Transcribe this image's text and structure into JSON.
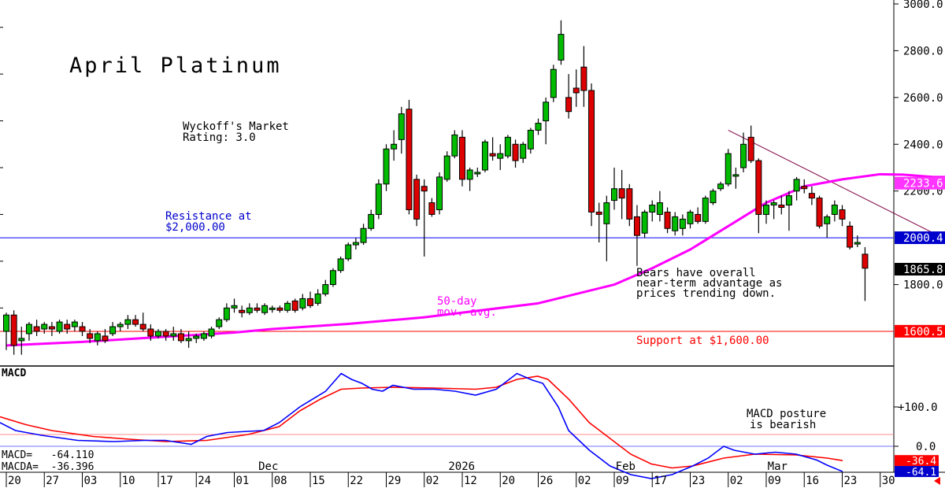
{
  "title": "April Platinum",
  "rating": {
    "line1": "Wyckoff's Market",
    "line2": "Rating: 3.0"
  },
  "annotations": {
    "resistance": {
      "line1": "Resistance at",
      "line2": "$2,000.00"
    },
    "ma": {
      "line1": "50-day",
      "line2": "mov. avg."
    },
    "bears": {
      "line1": "Bears have overall",
      "line2": "near-term advantage as",
      "line3": "prices trending down."
    },
    "support": "Support at $1,600.00",
    "macd_note": {
      "line1": "MACD posture",
      "line2": "is bearish"
    }
  },
  "price_axis": {
    "ticks": [
      "3000.0",
      "2800.0",
      "2600.0",
      "2400.0",
      "2200.0",
      "1800.0"
    ],
    "tick_values": [
      3000,
      2800,
      2600,
      2400,
      2200,
      1800
    ],
    "ylim": [
      1540,
      3020
    ]
  },
  "price_tags": [
    {
      "text": "2233.6",
      "value": 2233.6,
      "color": "#ff33ff"
    },
    {
      "text": "2000.4",
      "value": 2000.4,
      "color": "#0000cc"
    },
    {
      "text": "1865.8",
      "value": 1865.8,
      "color": "#000000"
    },
    {
      "text": "1600.5",
      "value": 1600.5,
      "color": "#ff0000"
    }
  ],
  "levels": {
    "resistance": 2000,
    "support": 1600
  },
  "macd": {
    "label": "MACD",
    "readout1": "MACD=   -64.110",
    "readout2": "MACDA=  -36.396",
    "ticks": [
      "+100.0",
      "0.0"
    ],
    "tick_values": [
      100,
      0
    ],
    "ylim": [
      -100,
      250
    ],
    "tags": [
      {
        "text": "-36.4",
        "value": -36.4,
        "color": "#ff0000"
      },
      {
        "text": "-64.1",
        "value": -64.1,
        "color": "#0000cc"
      }
    ]
  },
  "x_axis": {
    "months": [
      "Dec",
      "2026",
      "Feb",
      "Mar"
    ],
    "month_index": [
      34,
      59,
      81,
      101
    ],
    "days": [
      "20",
      "27",
      "03",
      "10",
      "17",
      "24",
      "01",
      "08",
      "15",
      "22",
      "29",
      "02",
      "12",
      "20",
      "26",
      "02",
      "09",
      "17",
      "23",
      "02",
      "09",
      "16",
      "23",
      "30"
    ],
    "day_index": [
      0,
      5,
      10,
      15,
      20,
      25,
      30,
      35,
      40,
      45,
      50,
      55,
      60,
      65,
      70,
      75,
      80,
      85,
      90,
      95,
      100,
      105,
      110,
      115
    ]
  },
  "chart_data": {
    "type": "candlestick",
    "title": "April Platinum",
    "colors": {
      "up": "#00bb00",
      "down": "#dd0000",
      "ma": "#ff00ff",
      "macd": "#0000ff",
      "signal": "#ff0000"
    },
    "ylim": [
      1540,
      3020
    ],
    "candles": [
      {
        "o": 1600,
        "h": 1680,
        "l": 1520,
        "c": 1670
      },
      {
        "o": 1670,
        "h": 1690,
        "l": 1500,
        "c": 1540
      },
      {
        "o": 1560,
        "h": 1620,
        "l": 1500,
        "c": 1570
      },
      {
        "o": 1590,
        "h": 1640,
        "l": 1560,
        "c": 1630
      },
      {
        "o": 1620,
        "h": 1650,
        "l": 1580,
        "c": 1600
      },
      {
        "o": 1610,
        "h": 1640,
        "l": 1590,
        "c": 1630
      },
      {
        "o": 1620,
        "h": 1640,
        "l": 1580,
        "c": 1610
      },
      {
        "o": 1600,
        "h": 1650,
        "l": 1590,
        "c": 1640
      },
      {
        "o": 1630,
        "h": 1650,
        "l": 1590,
        "c": 1610
      },
      {
        "o": 1620,
        "h": 1650,
        "l": 1600,
        "c": 1640
      },
      {
        "o": 1620,
        "h": 1640,
        "l": 1580,
        "c": 1600
      },
      {
        "o": 1590,
        "h": 1610,
        "l": 1550,
        "c": 1570
      },
      {
        "o": 1560,
        "h": 1600,
        "l": 1540,
        "c": 1590
      },
      {
        "o": 1580,
        "h": 1610,
        "l": 1550,
        "c": 1560
      },
      {
        "o": 1590,
        "h": 1640,
        "l": 1580,
        "c": 1620
      },
      {
        "o": 1620,
        "h": 1640,
        "l": 1600,
        "c": 1630
      },
      {
        "o": 1630,
        "h": 1670,
        "l": 1610,
        "c": 1650
      },
      {
        "o": 1650,
        "h": 1670,
        "l": 1620,
        "c": 1630
      },
      {
        "o": 1630,
        "h": 1680,
        "l": 1600,
        "c": 1610
      },
      {
        "o": 1610,
        "h": 1630,
        "l": 1560,
        "c": 1580
      },
      {
        "o": 1580,
        "h": 1610,
        "l": 1570,
        "c": 1600
      },
      {
        "o": 1600,
        "h": 1610,
        "l": 1560,
        "c": 1580
      },
      {
        "o": 1580,
        "h": 1620,
        "l": 1560,
        "c": 1590
      },
      {
        "o": 1590,
        "h": 1610,
        "l": 1550,
        "c": 1560
      },
      {
        "o": 1560,
        "h": 1600,
        "l": 1530,
        "c": 1570
      },
      {
        "o": 1570,
        "h": 1590,
        "l": 1550,
        "c": 1580
      },
      {
        "o": 1570,
        "h": 1600,
        "l": 1560,
        "c": 1590
      },
      {
        "o": 1580,
        "h": 1620,
        "l": 1570,
        "c": 1610
      },
      {
        "o": 1620,
        "h": 1660,
        "l": 1610,
        "c": 1650
      },
      {
        "o": 1650,
        "h": 1720,
        "l": 1640,
        "c": 1700
      },
      {
        "o": 1700,
        "h": 1740,
        "l": 1680,
        "c": 1710
      },
      {
        "o": 1690,
        "h": 1710,
        "l": 1660,
        "c": 1680
      },
      {
        "o": 1680,
        "h": 1720,
        "l": 1670,
        "c": 1700
      },
      {
        "o": 1700,
        "h": 1720,
        "l": 1680,
        "c": 1690
      },
      {
        "o": 1680,
        "h": 1720,
        "l": 1670,
        "c": 1710
      },
      {
        "o": 1700,
        "h": 1710,
        "l": 1680,
        "c": 1700
      },
      {
        "o": 1700,
        "h": 1710,
        "l": 1680,
        "c": 1690
      },
      {
        "o": 1690,
        "h": 1730,
        "l": 1680,
        "c": 1720
      },
      {
        "o": 1730,
        "h": 1740,
        "l": 1680,
        "c": 1690
      },
      {
        "o": 1700,
        "h": 1760,
        "l": 1690,
        "c": 1740
      },
      {
        "o": 1740,
        "h": 1770,
        "l": 1700,
        "c": 1710
      },
      {
        "o": 1720,
        "h": 1780,
        "l": 1710,
        "c": 1760
      },
      {
        "o": 1760,
        "h": 1820,
        "l": 1750,
        "c": 1800
      },
      {
        "o": 1800,
        "h": 1870,
        "l": 1790,
        "c": 1860
      },
      {
        "o": 1860,
        "h": 1920,
        "l": 1850,
        "c": 1910
      },
      {
        "o": 1910,
        "h": 1980,
        "l": 1900,
        "c": 1970
      },
      {
        "o": 1970,
        "h": 2000,
        "l": 1950,
        "c": 1980
      },
      {
        "o": 1980,
        "h": 2060,
        "l": 1970,
        "c": 2040
      },
      {
        "o": 2040,
        "h": 2120,
        "l": 2030,
        "c": 2100
      },
      {
        "o": 2100,
        "h": 2250,
        "l": 2080,
        "c": 2230
      },
      {
        "o": 2230,
        "h": 2400,
        "l": 2200,
        "c": 2380
      },
      {
        "o": 2380,
        "h": 2460,
        "l": 2330,
        "c": 2400
      },
      {
        "o": 2420,
        "h": 2560,
        "l": 2360,
        "c": 2530
      },
      {
        "o": 2550,
        "h": 2590,
        "l": 2100,
        "c": 2120
      },
      {
        "o": 2250,
        "h": 2270,
        "l": 2050,
        "c": 2080
      },
      {
        "o": 2220,
        "h": 2250,
        "l": 1920,
        "c": 2200
      },
      {
        "o": 2150,
        "h": 2170,
        "l": 2090,
        "c": 2100
      },
      {
        "o": 2120,
        "h": 2280,
        "l": 2100,
        "c": 2260
      },
      {
        "o": 2250,
        "h": 2370,
        "l": 2240,
        "c": 2350
      },
      {
        "o": 2350,
        "h": 2460,
        "l": 2340,
        "c": 2440
      },
      {
        "o": 2430,
        "h": 2460,
        "l": 2220,
        "c": 2250
      },
      {
        "o": 2250,
        "h": 2300,
        "l": 2200,
        "c": 2290
      },
      {
        "o": 2280,
        "h": 2300,
        "l": 2260,
        "c": 2280
      },
      {
        "o": 2290,
        "h": 2420,
        "l": 2280,
        "c": 2410
      },
      {
        "o": 2360,
        "h": 2430,
        "l": 2330,
        "c": 2350
      },
      {
        "o": 2340,
        "h": 2400,
        "l": 2290,
        "c": 2360
      },
      {
        "o": 2350,
        "h": 2440,
        "l": 2340,
        "c": 2430
      },
      {
        "o": 2400,
        "h": 2420,
        "l": 2300,
        "c": 2330
      },
      {
        "o": 2340,
        "h": 2410,
        "l": 2320,
        "c": 2400
      },
      {
        "o": 2380,
        "h": 2470,
        "l": 2360,
        "c": 2460
      },
      {
        "o": 2460,
        "h": 2510,
        "l": 2440,
        "c": 2490
      },
      {
        "o": 2500,
        "h": 2600,
        "l": 2400,
        "c": 2580
      },
      {
        "o": 2600,
        "h": 2740,
        "l": 2580,
        "c": 2720
      },
      {
        "o": 2760,
        "h": 2930,
        "l": 2740,
        "c": 2870
      },
      {
        "o": 2600,
        "h": 2700,
        "l": 2510,
        "c": 2540
      },
      {
        "o": 2640,
        "h": 2720,
        "l": 2560,
        "c": 2620
      },
      {
        "o": 2730,
        "h": 2820,
        "l": 2560,
        "c": 2630
      },
      {
        "o": 2630,
        "h": 2660,
        "l": 2050,
        "c": 2110
      },
      {
        "o": 2110,
        "h": 2150,
        "l": 1980,
        "c": 2100
      },
      {
        "o": 2060,
        "h": 2180,
        "l": 1900,
        "c": 2150
      },
      {
        "o": 2160,
        "h": 2300,
        "l": 2120,
        "c": 2210
      },
      {
        "o": 2210,
        "h": 2290,
        "l": 2080,
        "c": 2170
      },
      {
        "o": 2210,
        "h": 2230,
        "l": 2050,
        "c": 2080
      },
      {
        "o": 2090,
        "h": 2140,
        "l": 1880,
        "c": 2010
      },
      {
        "o": 2020,
        "h": 2120,
        "l": 2000,
        "c": 2110
      },
      {
        "o": 2110,
        "h": 2160,
        "l": 2070,
        "c": 2140
      },
      {
        "o": 2100,
        "h": 2200,
        "l": 2070,
        "c": 2150
      },
      {
        "o": 2110,
        "h": 2130,
        "l": 2020,
        "c": 2040
      },
      {
        "o": 2030,
        "h": 2110,
        "l": 2010,
        "c": 2090
      },
      {
        "o": 2040,
        "h": 2100,
        "l": 2010,
        "c": 2080
      },
      {
        "o": 2060,
        "h": 2120,
        "l": 2040,
        "c": 2110
      },
      {
        "o": 2100,
        "h": 2130,
        "l": 2060,
        "c": 2070
      },
      {
        "o": 2070,
        "h": 2180,
        "l": 2060,
        "c": 2170
      },
      {
        "o": 2150,
        "h": 2210,
        "l": 2140,
        "c": 2200
      },
      {
        "o": 2210,
        "h": 2240,
        "l": 2200,
        "c": 2230
      },
      {
        "o": 2230,
        "h": 2380,
        "l": 2220,
        "c": 2360
      },
      {
        "o": 2270,
        "h": 2300,
        "l": 2210,
        "c": 2270
      },
      {
        "o": 2300,
        "h": 2450,
        "l": 2280,
        "c": 2400
      },
      {
        "o": 2430,
        "h": 2480,
        "l": 2320,
        "c": 2330
      },
      {
        "o": 2330,
        "h": 2340,
        "l": 2020,
        "c": 2100
      },
      {
        "o": 2100,
        "h": 2160,
        "l": 2060,
        "c": 2140
      },
      {
        "o": 2140,
        "h": 2160,
        "l": 2080,
        "c": 2150
      },
      {
        "o": 2140,
        "h": 2180,
        "l": 2100,
        "c": 2130
      },
      {
        "o": 2140,
        "h": 2200,
        "l": 2030,
        "c": 2180
      },
      {
        "o": 2200,
        "h": 2260,
        "l": 2160,
        "c": 2250
      },
      {
        "o": 2220,
        "h": 2250,
        "l": 2190,
        "c": 2210
      },
      {
        "o": 2190,
        "h": 2220,
        "l": 2140,
        "c": 2170
      },
      {
        "o": 2170,
        "h": 2180,
        "l": 2040,
        "c": 2050
      },
      {
        "o": 2060,
        "h": 2100,
        "l": 2000,
        "c": 2090
      },
      {
        "o": 2100,
        "h": 2160,
        "l": 2070,
        "c": 2140
      },
      {
        "o": 2120,
        "h": 2140,
        "l": 2050,
        "c": 2080
      },
      {
        "o": 2050,
        "h": 2070,
        "l": 1950,
        "c": 1960
      },
      {
        "o": 1980,
        "h": 2010,
        "l": 1960,
        "c": 1980
      },
      {
        "o": 1930,
        "h": 1960,
        "l": 1730,
        "c": 1870
      }
    ],
    "ma50": [
      1540,
      1555,
      1575,
      1595,
      1610,
      1632,
      1660,
      1720,
      1800,
      1870,
      1950,
      2050,
      2150,
      2220,
      2250,
      2272,
      2270,
      2260,
      2260,
      2233.6
    ],
    "ma_index": [
      0,
      10,
      20,
      30,
      35,
      45,
      55,
      70,
      80,
      85,
      90,
      95,
      100,
      105,
      110,
      115,
      118,
      122,
      125,
      129
    ],
    "macd_series": [
      [
        0,
        60
      ],
      [
        3,
        40
      ],
      [
        8,
        28
      ],
      [
        15,
        15
      ],
      [
        22,
        12
      ],
      [
        28,
        15
      ],
      [
        32,
        15
      ],
      [
        37,
        5
      ],
      [
        40,
        25
      ],
      [
        44,
        35
      ],
      [
        48,
        38
      ],
      [
        51,
        40
      ],
      [
        54,
        60
      ],
      [
        58,
        100
      ],
      [
        63,
        140
      ],
      [
        66,
        185
      ],
      [
        68,
        170
      ],
      [
        70,
        160
      ],
      [
        72,
        145
      ],
      [
        74,
        140
      ],
      [
        76,
        155
      ],
      [
        80,
        145
      ],
      [
        84,
        145
      ],
      [
        88,
        140
      ],
      [
        92,
        130
      ],
      [
        96,
        145
      ],
      [
        100,
        185
      ],
      [
        103,
        168
      ],
      [
        105,
        160
      ],
      [
        108,
        100
      ],
      [
        110,
        40
      ],
      [
        114,
        -10
      ],
      [
        118,
        -50
      ],
      [
        122,
        -72
      ],
      [
        126,
        -82
      ],
      [
        130,
        -72
      ],
      [
        134,
        -50
      ],
      [
        137,
        -30
      ],
      [
        140,
        0
      ],
      [
        142,
        -10
      ],
      [
        146,
        -20
      ],
      [
        150,
        -15
      ],
      [
        154,
        -20
      ],
      [
        158,
        -35
      ],
      [
        160,
        -48
      ],
      [
        163,
        -64.11
      ]
    ],
    "signal_series": [
      [
        0,
        75
      ],
      [
        5,
        55
      ],
      [
        10,
        40
      ],
      [
        18,
        25
      ],
      [
        25,
        18
      ],
      [
        32,
        12
      ],
      [
        40,
        15
      ],
      [
        48,
        30
      ],
      [
        54,
        50
      ],
      [
        58,
        90
      ],
      [
        62,
        120
      ],
      [
        66,
        145
      ],
      [
        70,
        148
      ],
      [
        76,
        150
      ],
      [
        84,
        148
      ],
      [
        92,
        145
      ],
      [
        96,
        150
      ],
      [
        100,
        170
      ],
      [
        104,
        178
      ],
      [
        106,
        170
      ],
      [
        110,
        120
      ],
      [
        114,
        60
      ],
      [
        118,
        20
      ],
      [
        122,
        -20
      ],
      [
        126,
        -45
      ],
      [
        130,
        -55
      ],
      [
        134,
        -50
      ],
      [
        140,
        -30
      ],
      [
        146,
        -20
      ],
      [
        154,
        -22
      ],
      [
        160,
        -30
      ],
      [
        163,
        -36.396
      ]
    ],
    "macd_xmax": 163,
    "trendline": [
      [
        95,
        2460
      ],
      [
        130,
        1890
      ]
    ]
  }
}
